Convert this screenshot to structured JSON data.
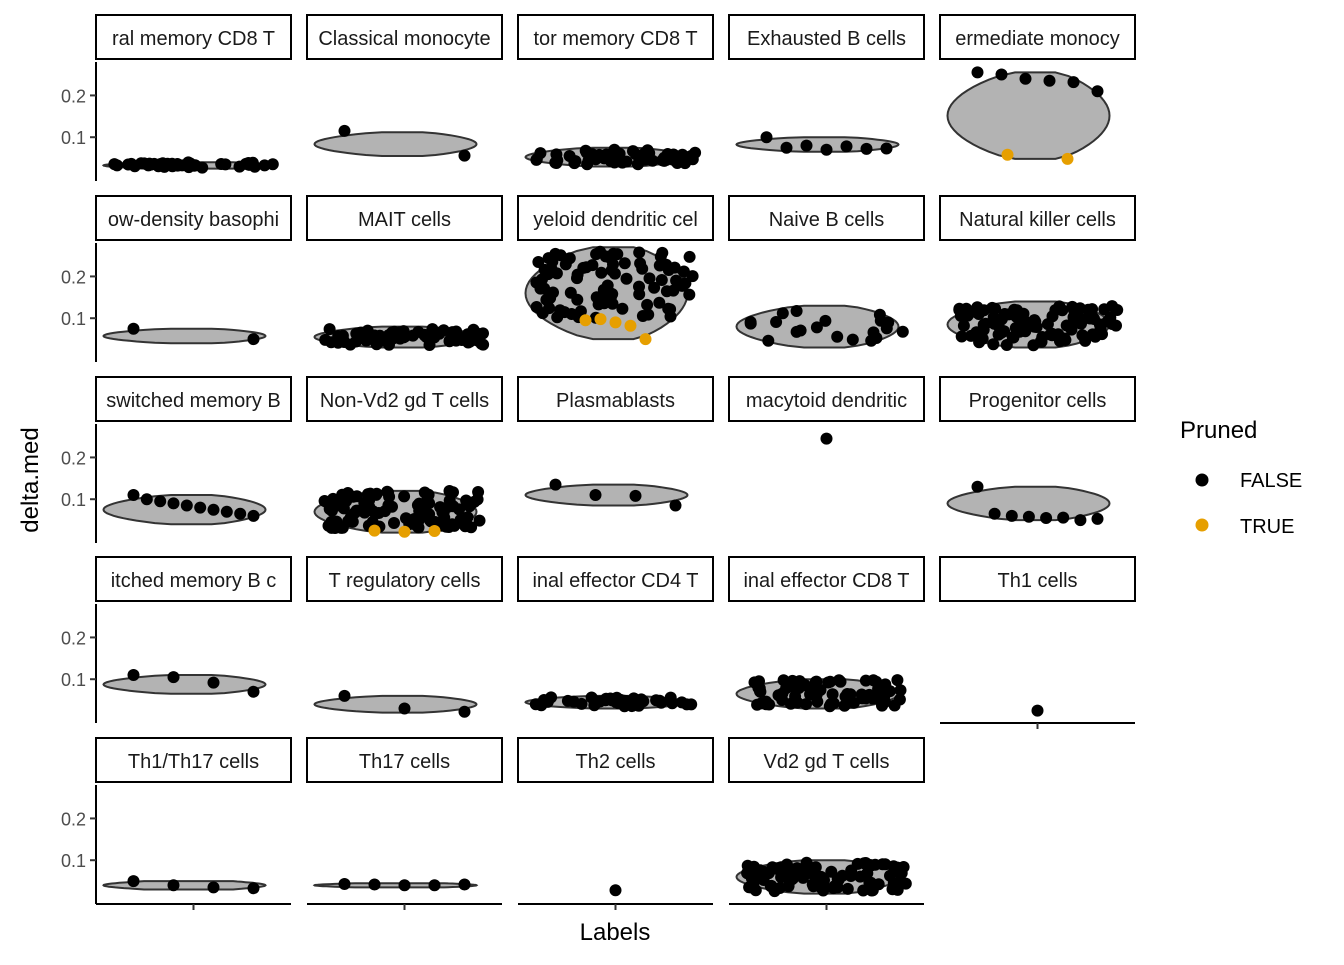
{
  "chart_data": {
    "type": "violin",
    "xlabel": "Labels",
    "ylabel": "delta.med",
    "ylim": [
      0.0,
      0.28
    ],
    "yticks": [
      0.1,
      0.2
    ],
    "ytick_labels": [
      "0.1",
      "0.2"
    ],
    "grid": false,
    "legend": {
      "title": "Pruned",
      "placement": "right",
      "entries": [
        {
          "label": "FALSE",
          "color": "#000000"
        },
        {
          "label": "TRUE",
          "color": "#E69F00"
        }
      ]
    },
    "colors": {
      "violin_fill": "#b3b3b3",
      "violin_stroke": "#333333",
      "false": "#000000",
      "true": "#E69F00"
    },
    "panels": [
      {
        "label": "ral memory CD8 T",
        "violin": [
          0.025,
          0.04
        ],
        "n": 40,
        "spread": [
          0.027,
          0.04
        ],
        "points": [],
        "pruned": []
      },
      {
        "label": "Classical monocyte",
        "violin": [
          0.055,
          0.112
        ],
        "n": 0,
        "points": [
          0.115,
          0.056
        ],
        "pruned": []
      },
      {
        "label": "tor memory CD8 T",
        "violin": [
          0.03,
          0.075
        ],
        "n": 60,
        "spread": [
          0.035,
          0.07
        ],
        "points": [],
        "pruned": []
      },
      {
        "label": "Exhausted B cells",
        "violin": [
          0.065,
          0.1
        ],
        "n": 0,
        "points": [
          0.1,
          0.075,
          0.08,
          0.07,
          0.078,
          0.072,
          0.073
        ],
        "pruned": []
      },
      {
        "label": "ermediate monocy",
        "violin": [
          0.048,
          0.255
        ],
        "n": 0,
        "points": [
          0.255,
          0.25,
          0.24,
          0.235,
          0.232,
          0.21
        ],
        "pruned": [
          0.058,
          0.048
        ]
      },
      {
        "label": "ow-density basophi",
        "violin": [
          0.04,
          0.075
        ],
        "n": 0,
        "points": [
          0.075,
          0.05
        ],
        "pruned": []
      },
      {
        "label": "MAIT cells",
        "violin": [
          0.03,
          0.08
        ],
        "n": 60,
        "spread": [
          0.035,
          0.075
        ],
        "points": [],
        "pruned": []
      },
      {
        "label": "yeloid dendritic cel",
        "violin": [
          0.05,
          0.27
        ],
        "n": 90,
        "spread": [
          0.1,
          0.26
        ],
        "points": [],
        "pruned": [
          0.095,
          0.098,
          0.09,
          0.082,
          0.05
        ]
      },
      {
        "label": "Naive B cells",
        "violin": [
          0.03,
          0.13
        ],
        "n": 20,
        "spread": [
          0.04,
          0.125
        ],
        "points": [],
        "pruned": []
      },
      {
        "label": "Natural killer cells",
        "violin": [
          0.03,
          0.14
        ],
        "n": 100,
        "spread": [
          0.035,
          0.13
        ],
        "points": [],
        "pruned": []
      },
      {
        "label": "switched memory B",
        "violin": [
          0.04,
          0.11
        ],
        "n": 0,
        "points": [
          0.11,
          0.1,
          0.095,
          0.09,
          0.085,
          0.08,
          0.075,
          0.07,
          0.065,
          0.06
        ],
        "pruned": []
      },
      {
        "label": "Non-Vd2 gd T cells",
        "violin": [
          0.02,
          0.12
        ],
        "n": 100,
        "spread": [
          0.03,
          0.12
        ],
        "points": [],
        "pruned": [
          0.025,
          0.022,
          0.024
        ]
      },
      {
        "label": "Plasmablasts",
        "violin": [
          0.085,
          0.135
        ],
        "n": 0,
        "points": [
          0.135,
          0.11,
          0.108,
          0.085
        ],
        "pruned": []
      },
      {
        "label": "macytoid dendritic",
        "violin": null,
        "n": 0,
        "points": [
          0.245
        ],
        "pruned": []
      },
      {
        "label": "Progenitor cells",
        "violin": [
          0.05,
          0.13
        ],
        "n": 0,
        "points": [
          0.13,
          0.065,
          0.06,
          0.058,
          0.055,
          0.056,
          0.05,
          0.053
        ],
        "pruned": []
      },
      {
        "label": "itched memory B c",
        "violin": [
          0.065,
          0.11
        ],
        "n": 0,
        "points": [
          0.11,
          0.105,
          0.092,
          0.07
        ],
        "pruned": []
      },
      {
        "label": "T regulatory cells",
        "violin": [
          0.02,
          0.06
        ],
        "n": 0,
        "points": [
          0.06,
          0.03,
          0.022
        ],
        "pruned": []
      },
      {
        "label": "inal effector CD4 T",
        "violin": [
          0.03,
          0.06
        ],
        "n": 40,
        "spread": [
          0.035,
          0.058
        ],
        "points": [],
        "pruned": []
      },
      {
        "label": "inal effector CD8 T",
        "violin": [
          0.03,
          0.1
        ],
        "n": 70,
        "spread": [
          0.035,
          0.1
        ],
        "points": [],
        "pruned": []
      },
      {
        "label": "Th1 cells",
        "violin": null,
        "n": 0,
        "points": [
          0.025
        ],
        "pruned": []
      },
      {
        "label": "Th1/Th17 cells",
        "violin": [
          0.03,
          0.05
        ],
        "n": 0,
        "points": [
          0.05,
          0.04,
          0.035,
          0.033
        ],
        "pruned": []
      },
      {
        "label": "Th17 cells",
        "violin": [
          0.035,
          0.045
        ],
        "n": 0,
        "points": [
          0.043,
          0.042,
          0.04,
          0.04,
          0.042
        ],
        "pruned": []
      },
      {
        "label": "Th2 cells",
        "violin": null,
        "n": 0,
        "points": [
          0.028
        ],
        "pruned": []
      },
      {
        "label": "Vd2 gd T cells",
        "violin": [
          0.02,
          0.1
        ],
        "n": 90,
        "spread": [
          0.025,
          0.095
        ],
        "points": [],
        "pruned": []
      }
    ]
  }
}
